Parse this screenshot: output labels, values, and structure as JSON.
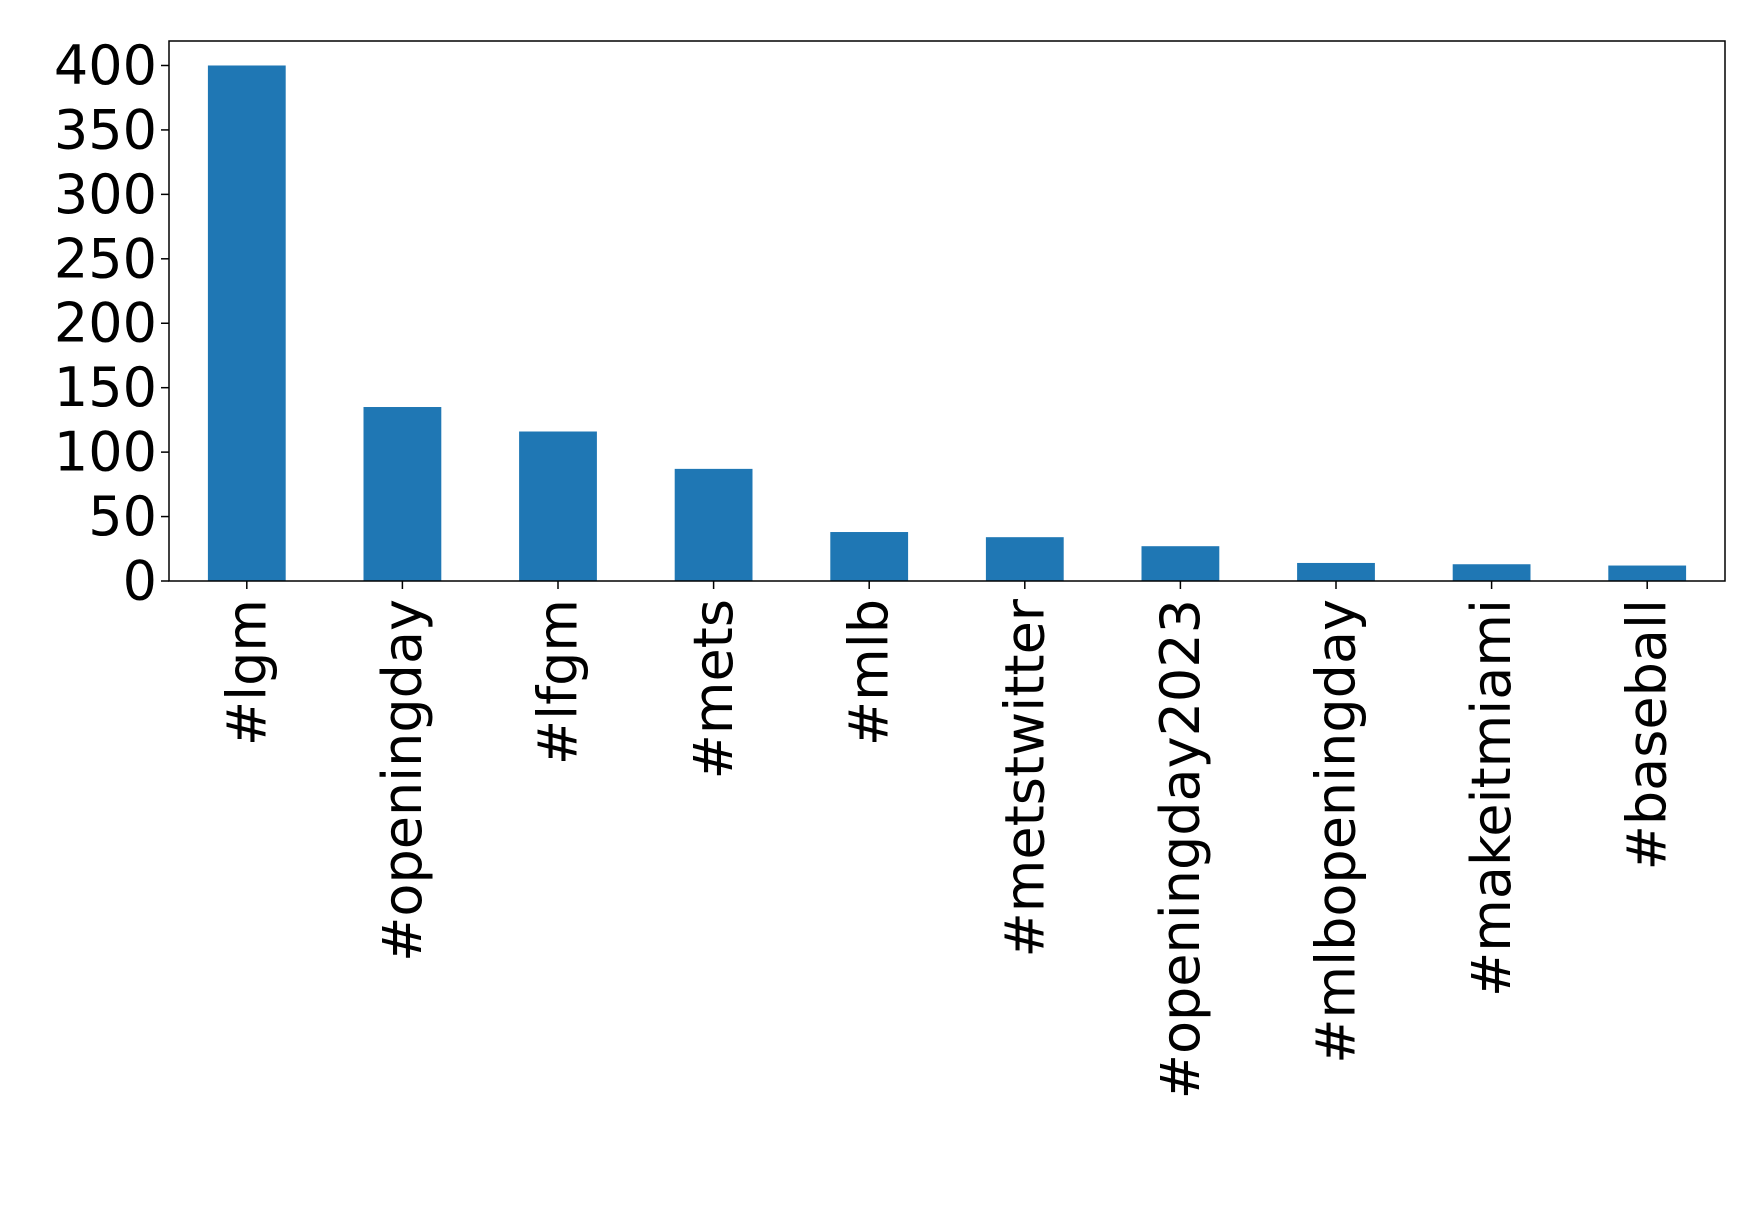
{
  "chart_data": {
    "type": "bar",
    "title": "",
    "xlabel": "",
    "ylabel": "",
    "categories": [
      "#lgm",
      "#openingday",
      "#lfgm",
      "#mets",
      "#mlb",
      "#metstwitter",
      "#openingday2023",
      "#mlbopeningday",
      "#makeitmiami",
      "#baseball"
    ],
    "values": [
      400,
      135,
      116,
      87,
      38,
      34,
      27,
      14,
      13,
      12
    ],
    "ylim": [
      0,
      419
    ],
    "yticks": [
      0,
      50,
      100,
      150,
      200,
      250,
      300,
      350,
      400
    ],
    "ytick_labels": [
      "0",
      "50",
      "100",
      "150",
      "200",
      "250",
      "300",
      "350",
      "400"
    ],
    "bar_color": "#1f77b4",
    "grid": false,
    "legend": "none"
  }
}
